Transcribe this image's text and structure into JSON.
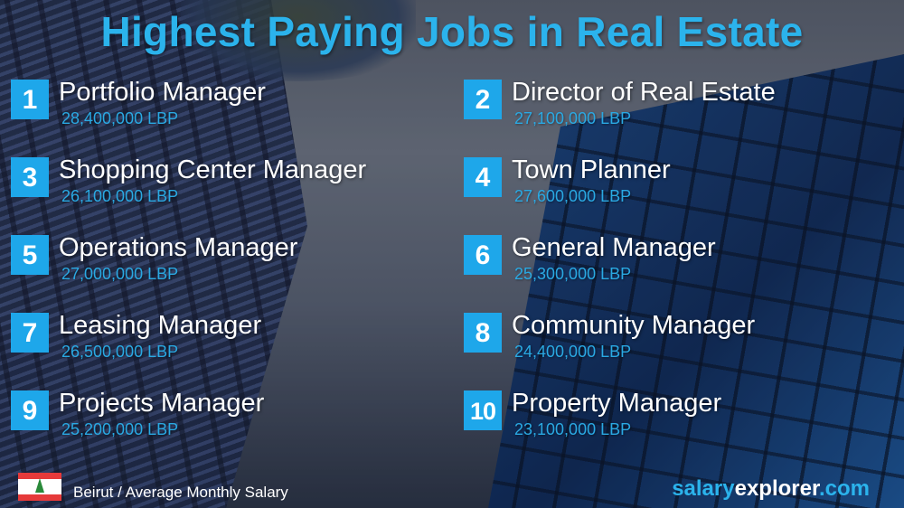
{
  "title": "Highest Paying Jobs in Real Estate",
  "jobs": [
    {
      "rank": "1",
      "title": "Portfolio Manager",
      "salary": "28,400,000 LBP"
    },
    {
      "rank": "2",
      "title": "Director of Real Estate",
      "salary": "27,100,000 LBP"
    },
    {
      "rank": "3",
      "title": "Shopping Center Manager",
      "salary": "26,100,000 LBP"
    },
    {
      "rank": "4",
      "title": "Town Planner",
      "salary": "27,600,000 LBP"
    },
    {
      "rank": "5",
      "title": "Operations Manager",
      "salary": "27,000,000 LBP"
    },
    {
      "rank": "6",
      "title": "General Manager",
      "salary": "25,300,000 LBP"
    },
    {
      "rank": "7",
      "title": "Leasing Manager",
      "salary": "26,500,000 LBP"
    },
    {
      "rank": "8",
      "title": "Community Manager",
      "salary": "24,400,000 LBP"
    },
    {
      "rank": "9",
      "title": "Projects Manager",
      "salary": "25,200,000 LBP"
    },
    {
      "rank": "10",
      "title": "Property Manager",
      "salary": "23,100,000 LBP"
    }
  ],
  "footer": {
    "flag_icon": "lebanon-flag",
    "location": "Beirut / Average Monthly Salary"
  },
  "brand": {
    "part1": "salary",
    "part2": "explorer",
    "part3": ".com"
  },
  "colors": {
    "accent": "#1ea7ea",
    "salary": "#2aa9e3",
    "title": "#2bb3ec"
  }
}
